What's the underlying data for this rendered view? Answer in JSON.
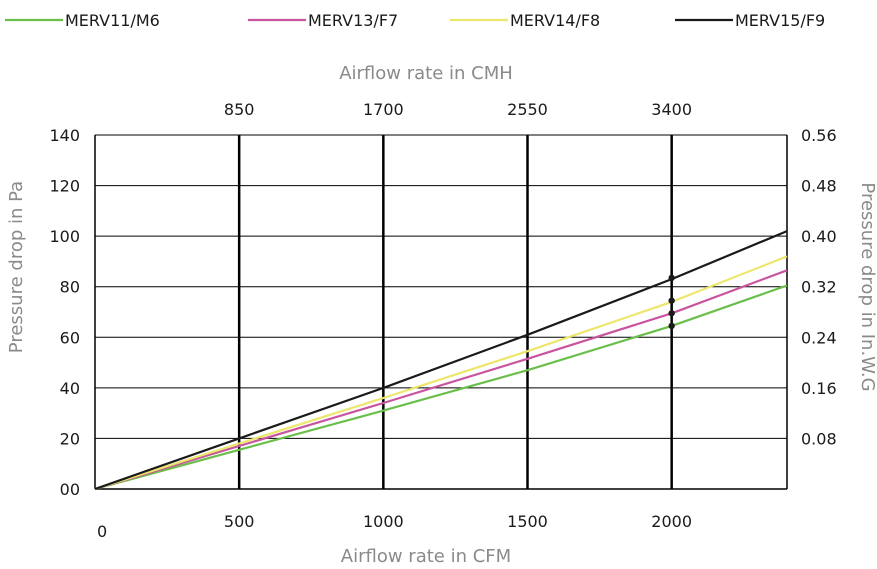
{
  "chart_data": {
    "type": "line",
    "xlabel": "Airflow rate in CFM",
    "x2label": "Airflow rate in CMH",
    "ylabel": "Pressure drop in Pa",
    "y2label": "Pressure drop in In.W.G",
    "xlim": [
      0,
      2400
    ],
    "ylim": [
      0,
      140
    ],
    "x_ticks": [
      {
        "value": 0,
        "label": "0"
      },
      {
        "value": 500,
        "label": "500"
      },
      {
        "value": 1000,
        "label": "1000"
      },
      {
        "value": 1500,
        "label": "1500"
      },
      {
        "value": 2000,
        "label": "2000"
      }
    ],
    "x2_ticks": [
      {
        "value": 500,
        "label": "850"
      },
      {
        "value": 1000,
        "label": "1700"
      },
      {
        "value": 1500,
        "label": "2550"
      },
      {
        "value": 2000,
        "label": "3400"
      }
    ],
    "y_ticks": [
      {
        "value": 0,
        "label": "00"
      },
      {
        "value": 20,
        "label": "20"
      },
      {
        "value": 40,
        "label": "40"
      },
      {
        "value": 60,
        "label": "60"
      },
      {
        "value": 80,
        "label": "80"
      },
      {
        "value": 100,
        "label": "100"
      },
      {
        "value": 120,
        "label": "120"
      },
      {
        "value": 140,
        "label": "140"
      }
    ],
    "y2_ticks": [
      {
        "value": 20,
        "label": "0.08"
      },
      {
        "value": 40,
        "label": "0.16"
      },
      {
        "value": 60,
        "label": "0.24"
      },
      {
        "value": 80,
        "label": "0.32"
      },
      {
        "value": 100,
        "label": "0.40"
      },
      {
        "value": 120,
        "label": "0.48"
      },
      {
        "value": 140,
        "label": "0.56"
      }
    ],
    "vertical_grid_x": [
      500,
      1000,
      1500,
      2000
    ],
    "grid": true,
    "legend_position": "top",
    "series": [
      {
        "name": "MERV11/M6",
        "color": "#6abf4b",
        "x": [
          0,
          500,
          1000,
          1500,
          2000,
          2400
        ],
        "y": [
          0,
          15.5,
          31,
          47,
          64.5,
          80.5
        ],
        "marker": {
          "x": 2000,
          "y": 64.5
        }
      },
      {
        "name": "MERV13/F7",
        "color": "#c8559e",
        "x": [
          0,
          500,
          1000,
          1500,
          2000,
          2400
        ],
        "y": [
          0,
          17,
          34,
          51.5,
          69.5,
          86.5
        ],
        "marker": {
          "x": 2000,
          "y": 69.5
        }
      },
      {
        "name": "MERV14/F8",
        "color": "#ece76c",
        "x": [
          0,
          500,
          1000,
          1500,
          2000,
          2400
        ],
        "y": [
          0,
          18,
          36,
          54.5,
          74,
          92
        ],
        "marker": {
          "x": 2000,
          "y": 74.5
        }
      },
      {
        "name": "MERV15/F9",
        "color": "#1a1a1a",
        "x": [
          0,
          500,
          1000,
          1500,
          2000,
          2400
        ],
        "y": [
          0,
          20,
          40,
          61,
          83,
          102
        ],
        "marker": {
          "x": 2000,
          "y": 83.5
        }
      }
    ]
  }
}
